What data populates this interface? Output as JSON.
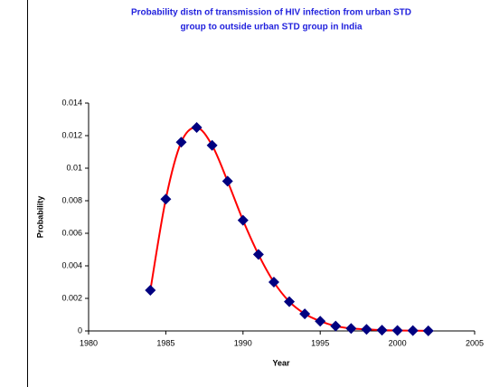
{
  "chart_data": {
    "type": "scatter",
    "title": [
      "Probability distn of transmission of HIV infection from urban STD",
      "group to outside urban STD group in India"
    ],
    "x_label": "Year",
    "y_label": "Probability",
    "series": [
      {
        "name": "Probability",
        "marker_color": "#000080",
        "line_color": "#ff0000",
        "x": [
          1984,
          1985,
          1986,
          1987,
          1988,
          1989,
          1990,
          1991,
          1992,
          1993,
          1994,
          1995,
          1996,
          1997,
          1998,
          1999,
          2000,
          2001,
          2002
        ],
        "values": [
          0.0025,
          0.0081,
          0.0116,
          0.0125,
          0.0114,
          0.0092,
          0.0068,
          0.0047,
          0.003,
          0.0018,
          0.00105,
          0.0006,
          0.0003,
          0.00015,
          0.0001,
          5e-05,
          3e-05,
          2e-05,
          1e-05
        ]
      }
    ],
    "xlim": [
      1980,
      2005
    ],
    "xticks": [
      1980,
      1985,
      1990,
      1995,
      2000,
      2005
    ],
    "ylim": [
      0,
      0.014
    ],
    "yticks": [
      0,
      0.002,
      0.004,
      0.006,
      0.008,
      0.01,
      0.012,
      0.014
    ],
    "smooth_line": true
  }
}
